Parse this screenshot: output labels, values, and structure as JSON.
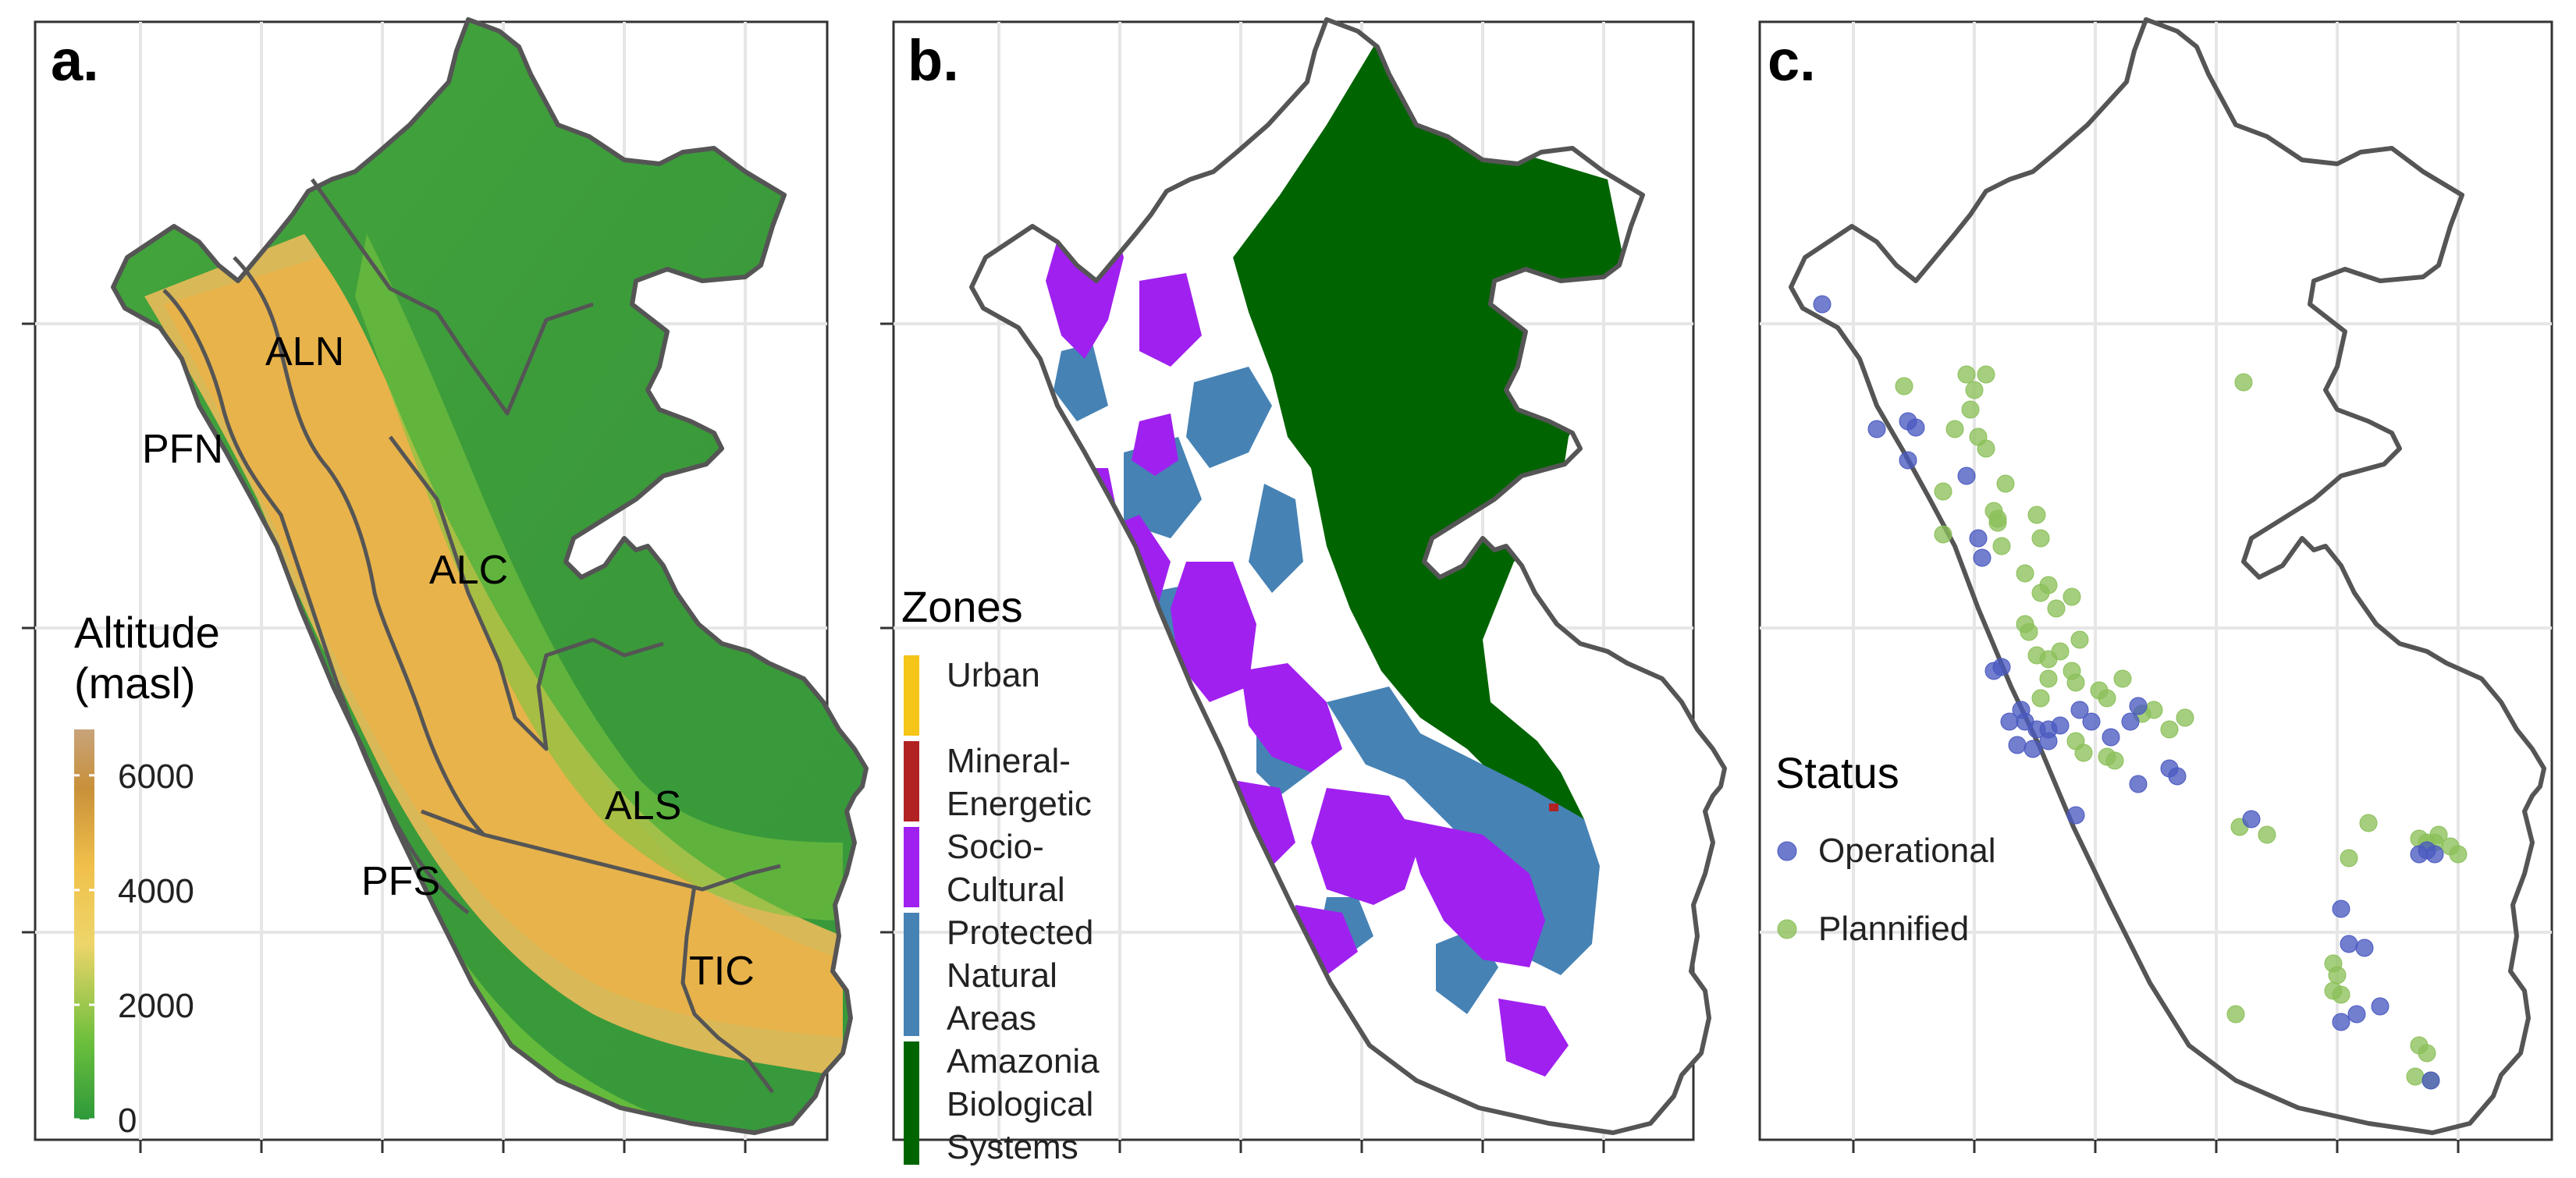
{
  "panels": {
    "a": {
      "letter": "a.",
      "legend_title_line1": "Altitude",
      "legend_title_line2": "(masl)",
      "legend_ticks": [
        {
          "value": 6000,
          "label": "6000"
        },
        {
          "value": 4000,
          "label": "4000"
        },
        {
          "value": 2000,
          "label": "2000"
        },
        {
          "value": 0,
          "label": "0"
        }
      ],
      "legend_range": [
        0,
        6800
      ],
      "colors": {
        "low": "#2e9a3a",
        "lowland": "#4aa83b",
        "mid": "#7cc43c",
        "high": "#f0c84a",
        "peak": "#d7a44a",
        "top": "#c89a6a"
      },
      "regions": [
        {
          "code": "ALN",
          "label": "ALN"
        },
        {
          "code": "PFN",
          "label": "PFN"
        },
        {
          "code": "ALC",
          "label": "ALC"
        },
        {
          "code": "ALS",
          "label": "ALS"
        },
        {
          "code": "PFS",
          "label": "PFS"
        },
        {
          "code": "TIC",
          "label": "TIC"
        }
      ]
    },
    "b": {
      "letter": "b.",
      "legend_title": "Zones",
      "zones": [
        {
          "id": "urban",
          "lines": [
            "Urban"
          ],
          "color": "#f5c518"
        },
        {
          "id": "mineral",
          "lines": [
            "Mineral-",
            "Energetic"
          ],
          "color": "#b22222"
        },
        {
          "id": "socio",
          "lines": [
            "Socio-",
            "Cultural"
          ],
          "color": "#a020f0"
        },
        {
          "id": "protected",
          "lines": [
            "Protected",
            "Natural",
            "Areas"
          ],
          "color": "#4682b4"
        },
        {
          "id": "amazonia",
          "lines": [
            "Amazonia",
            "Biological",
            "Systems"
          ],
          "color": "#006400"
        }
      ]
    },
    "c": {
      "letter": "c.",
      "legend_title": "Status",
      "statuses": [
        {
          "id": "operational",
          "label": "Operational",
          "color": "#4a5ac0"
        },
        {
          "id": "plannified",
          "label": "Plannified",
          "color": "#8cc05a"
        }
      ]
    }
  }
}
